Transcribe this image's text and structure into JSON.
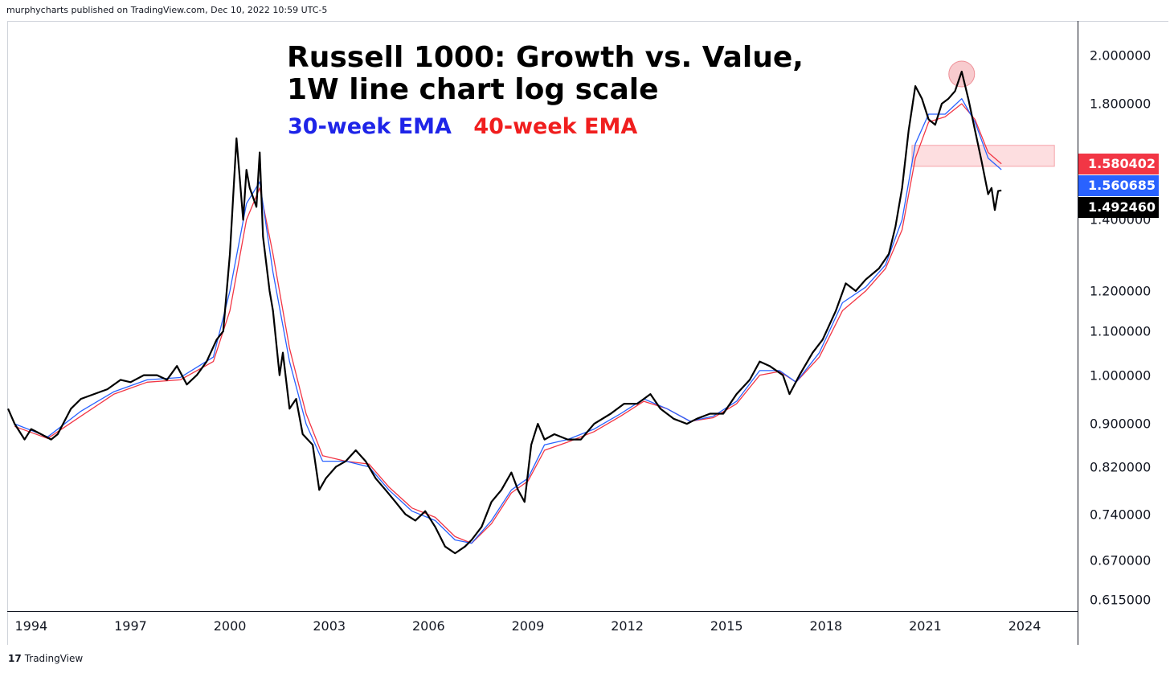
{
  "header": {
    "published": "murphycharts published on TradingView.com, Dec 10, 2022 10:59 UTC-5"
  },
  "footer": {
    "logo_glyph": "17",
    "brand": "TradingView"
  },
  "colors": {
    "price": "#000000",
    "ema30": "#2962ff",
    "ema40": "#f23645",
    "resistance_zone": "#fcd6d8",
    "peak_marker": "#f7c2c5"
  },
  "chart_data": {
    "type": "line",
    "title_line1": "Russell 1000: Growth vs. Value,",
    "title_line2": "1W line chart log scale",
    "legend": [
      {
        "label": "30-week EMA",
        "color": "#1e24e8"
      },
      {
        "label": "40-week EMA",
        "color": "#f01e1e"
      }
    ],
    "y_scale": "log",
    "ylim": [
      0.6,
      2.15
    ],
    "xlim": [
      1993.3,
      2025.6
    ],
    "y_ticks": [
      "2.000000",
      "1.800000",
      "1.400000",
      "1.200000",
      "1.100000",
      "1.000000",
      "0.900000",
      "0.820000",
      "0.740000",
      "0.670000",
      "0.615000"
    ],
    "x_ticks": [
      "1994",
      "1997",
      "2000",
      "2003",
      "2006",
      "2009",
      "2012",
      "2015",
      "2018",
      "2021",
      "2024"
    ],
    "last_values": [
      {
        "label": "1.580402",
        "value": 1.580402,
        "series": "40-week EMA",
        "color": "#f23645"
      },
      {
        "label": "1.560685",
        "value": 1.560685,
        "series": "30-week EMA",
        "color": "#2962ff"
      },
      {
        "label": "1.492460",
        "value": 1.49246,
        "series": "price",
        "color": "#000000"
      }
    ],
    "annotations": [
      {
        "type": "zone",
        "x": [
          2020.6,
          2024.9
        ],
        "y": [
          1.572,
          1.645
        ],
        "color": "#fcd6d8"
      },
      {
        "type": "circle",
        "x": 2022.1,
        "y": 1.92,
        "color": "#f7c2c5"
      }
    ],
    "series": [
      {
        "name": "price",
        "points": [
          [
            1993.3,
            0.93
          ],
          [
            1993.5,
            0.9
          ],
          [
            1993.8,
            0.87
          ],
          [
            1994.0,
            0.89
          ],
          [
            1994.3,
            0.88
          ],
          [
            1994.6,
            0.87
          ],
          [
            1994.8,
            0.88
          ],
          [
            1995.2,
            0.93
          ],
          [
            1995.5,
            0.95
          ],
          [
            1995.9,
            0.96
          ],
          [
            1996.3,
            0.97
          ],
          [
            1996.7,
            0.99
          ],
          [
            1997.0,
            0.985
          ],
          [
            1997.4,
            1.0
          ],
          [
            1997.8,
            1.0
          ],
          [
            1998.1,
            0.99
          ],
          [
            1998.4,
            1.02
          ],
          [
            1998.7,
            0.98
          ],
          [
            1999.0,
            1.0
          ],
          [
            1999.3,
            1.03
          ],
          [
            1999.6,
            1.08
          ],
          [
            1999.8,
            1.1
          ],
          [
            2000.0,
            1.3
          ],
          [
            2000.2,
            1.67
          ],
          [
            2000.4,
            1.4
          ],
          [
            2000.5,
            1.56
          ],
          [
            2000.6,
            1.5
          ],
          [
            2000.8,
            1.44
          ],
          [
            2000.9,
            1.62
          ],
          [
            2001.0,
            1.35
          ],
          [
            2001.2,
            1.2
          ],
          [
            2001.3,
            1.15
          ],
          [
            2001.5,
            1.0
          ],
          [
            2001.6,
            1.05
          ],
          [
            2001.8,
            0.93
          ],
          [
            2002.0,
            0.95
          ],
          [
            2002.2,
            0.88
          ],
          [
            2002.5,
            0.86
          ],
          [
            2002.7,
            0.78
          ],
          [
            2002.9,
            0.8
          ],
          [
            2003.2,
            0.82
          ],
          [
            2003.5,
            0.83
          ],
          [
            2003.8,
            0.85
          ],
          [
            2004.1,
            0.83
          ],
          [
            2004.4,
            0.8
          ],
          [
            2004.7,
            0.78
          ],
          [
            2005.0,
            0.76
          ],
          [
            2005.3,
            0.74
          ],
          [
            2005.6,
            0.73
          ],
          [
            2005.9,
            0.745
          ],
          [
            2006.2,
            0.72
          ],
          [
            2006.5,
            0.69
          ],
          [
            2006.8,
            0.68
          ],
          [
            2007.1,
            0.69
          ],
          [
            2007.3,
            0.7
          ],
          [
            2007.6,
            0.72
          ],
          [
            2007.9,
            0.76
          ],
          [
            2008.2,
            0.78
          ],
          [
            2008.5,
            0.81
          ],
          [
            2008.7,
            0.78
          ],
          [
            2008.9,
            0.76
          ],
          [
            2009.1,
            0.86
          ],
          [
            2009.3,
            0.9
          ],
          [
            2009.5,
            0.87
          ],
          [
            2009.8,
            0.88
          ],
          [
            2010.2,
            0.87
          ],
          [
            2010.6,
            0.87
          ],
          [
            2011.0,
            0.9
          ],
          [
            2011.5,
            0.92
          ],
          [
            2011.9,
            0.94
          ],
          [
            2012.3,
            0.94
          ],
          [
            2012.7,
            0.96
          ],
          [
            2013.0,
            0.93
          ],
          [
            2013.4,
            0.91
          ],
          [
            2013.8,
            0.9
          ],
          [
            2014.1,
            0.91
          ],
          [
            2014.5,
            0.92
          ],
          [
            2014.9,
            0.92
          ],
          [
            2015.3,
            0.96
          ],
          [
            2015.7,
            0.99
          ],
          [
            2016.0,
            1.03
          ],
          [
            2016.3,
            1.02
          ],
          [
            2016.7,
            1.0
          ],
          [
            2016.9,
            0.96
          ],
          [
            2017.2,
            1.0
          ],
          [
            2017.6,
            1.05
          ],
          [
            2017.9,
            1.08
          ],
          [
            2018.3,
            1.15
          ],
          [
            2018.6,
            1.22
          ],
          [
            2018.9,
            1.2
          ],
          [
            2019.2,
            1.23
          ],
          [
            2019.6,
            1.26
          ],
          [
            2019.9,
            1.3
          ],
          [
            2020.1,
            1.38
          ],
          [
            2020.3,
            1.5
          ],
          [
            2020.5,
            1.7
          ],
          [
            2020.7,
            1.87
          ],
          [
            2020.9,
            1.82
          ],
          [
            2021.1,
            1.74
          ],
          [
            2021.3,
            1.72
          ],
          [
            2021.5,
            1.8
          ],
          [
            2021.7,
            1.82
          ],
          [
            2021.9,
            1.85
          ],
          [
            2022.1,
            1.93
          ],
          [
            2022.3,
            1.82
          ],
          [
            2022.5,
            1.7
          ],
          [
            2022.7,
            1.59
          ],
          [
            2022.9,
            1.48
          ],
          [
            2023.0,
            1.5
          ],
          [
            2023.1,
            1.43
          ],
          [
            2023.2,
            1.49
          ],
          [
            2023.3,
            1.492
          ]
        ]
      },
      {
        "name": "30-week EMA",
        "points": [
          [
            1993.5,
            0.9
          ],
          [
            1994.5,
            0.875
          ],
          [
            1995.5,
            0.925
          ],
          [
            1996.5,
            0.965
          ],
          [
            1997.5,
            0.99
          ],
          [
            1998.5,
            0.995
          ],
          [
            1999.5,
            1.04
          ],
          [
            2000.0,
            1.2
          ],
          [
            2000.5,
            1.45
          ],
          [
            2000.9,
            1.52
          ],
          [
            2001.3,
            1.25
          ],
          [
            2001.8,
            1.03
          ],
          [
            2002.3,
            0.9
          ],
          [
            2002.8,
            0.83
          ],
          [
            2003.5,
            0.83
          ],
          [
            2004.2,
            0.82
          ],
          [
            2004.8,
            0.78
          ],
          [
            2005.5,
            0.745
          ],
          [
            2006.2,
            0.73
          ],
          [
            2006.8,
            0.7
          ],
          [
            2007.3,
            0.695
          ],
          [
            2007.9,
            0.73
          ],
          [
            2008.5,
            0.78
          ],
          [
            2009.0,
            0.8
          ],
          [
            2009.5,
            0.86
          ],
          [
            2010.2,
            0.87
          ],
          [
            2011.0,
            0.89
          ],
          [
            2011.8,
            0.92
          ],
          [
            2012.5,
            0.95
          ],
          [
            2013.2,
            0.93
          ],
          [
            2013.9,
            0.905
          ],
          [
            2014.6,
            0.915
          ],
          [
            2015.3,
            0.945
          ],
          [
            2016.0,
            1.01
          ],
          [
            2016.6,
            1.01
          ],
          [
            2017.1,
            0.985
          ],
          [
            2017.8,
            1.05
          ],
          [
            2018.5,
            1.17
          ],
          [
            2019.2,
            1.21
          ],
          [
            2019.8,
            1.27
          ],
          [
            2020.3,
            1.4
          ],
          [
            2020.7,
            1.65
          ],
          [
            2021.1,
            1.76
          ],
          [
            2021.6,
            1.76
          ],
          [
            2022.1,
            1.82
          ],
          [
            2022.5,
            1.73
          ],
          [
            2022.9,
            1.6
          ],
          [
            2023.3,
            1.5607
          ]
        ]
      },
      {
        "name": "40-week EMA",
        "points": [
          [
            1993.5,
            0.895
          ],
          [
            1994.5,
            0.872
          ],
          [
            1995.5,
            0.915
          ],
          [
            1996.5,
            0.96
          ],
          [
            1997.5,
            0.985
          ],
          [
            1998.5,
            0.99
          ],
          [
            1999.5,
            1.03
          ],
          [
            2000.0,
            1.15
          ],
          [
            2000.5,
            1.4
          ],
          [
            2000.9,
            1.5
          ],
          [
            2001.3,
            1.3
          ],
          [
            2001.8,
            1.06
          ],
          [
            2002.3,
            0.92
          ],
          [
            2002.8,
            0.84
          ],
          [
            2003.5,
            0.83
          ],
          [
            2004.2,
            0.825
          ],
          [
            2004.8,
            0.785
          ],
          [
            2005.5,
            0.75
          ],
          [
            2006.2,
            0.735
          ],
          [
            2006.8,
            0.705
          ],
          [
            2007.3,
            0.695
          ],
          [
            2007.9,
            0.725
          ],
          [
            2008.5,
            0.775
          ],
          [
            2009.0,
            0.795
          ],
          [
            2009.5,
            0.85
          ],
          [
            2010.2,
            0.865
          ],
          [
            2011.0,
            0.885
          ],
          [
            2011.8,
            0.915
          ],
          [
            2012.5,
            0.945
          ],
          [
            2013.2,
            0.93
          ],
          [
            2013.9,
            0.905
          ],
          [
            2014.6,
            0.912
          ],
          [
            2015.3,
            0.94
          ],
          [
            2016.0,
            1.0
          ],
          [
            2016.6,
            1.008
          ],
          [
            2017.1,
            0.985
          ],
          [
            2017.8,
            1.04
          ],
          [
            2018.5,
            1.15
          ],
          [
            2019.2,
            1.2
          ],
          [
            2019.8,
            1.26
          ],
          [
            2020.3,
            1.37
          ],
          [
            2020.7,
            1.6
          ],
          [
            2021.1,
            1.73
          ],
          [
            2021.6,
            1.75
          ],
          [
            2022.1,
            1.8
          ],
          [
            2022.5,
            1.74
          ],
          [
            2022.9,
            1.62
          ],
          [
            2023.3,
            1.5804
          ]
        ]
      }
    ]
  }
}
